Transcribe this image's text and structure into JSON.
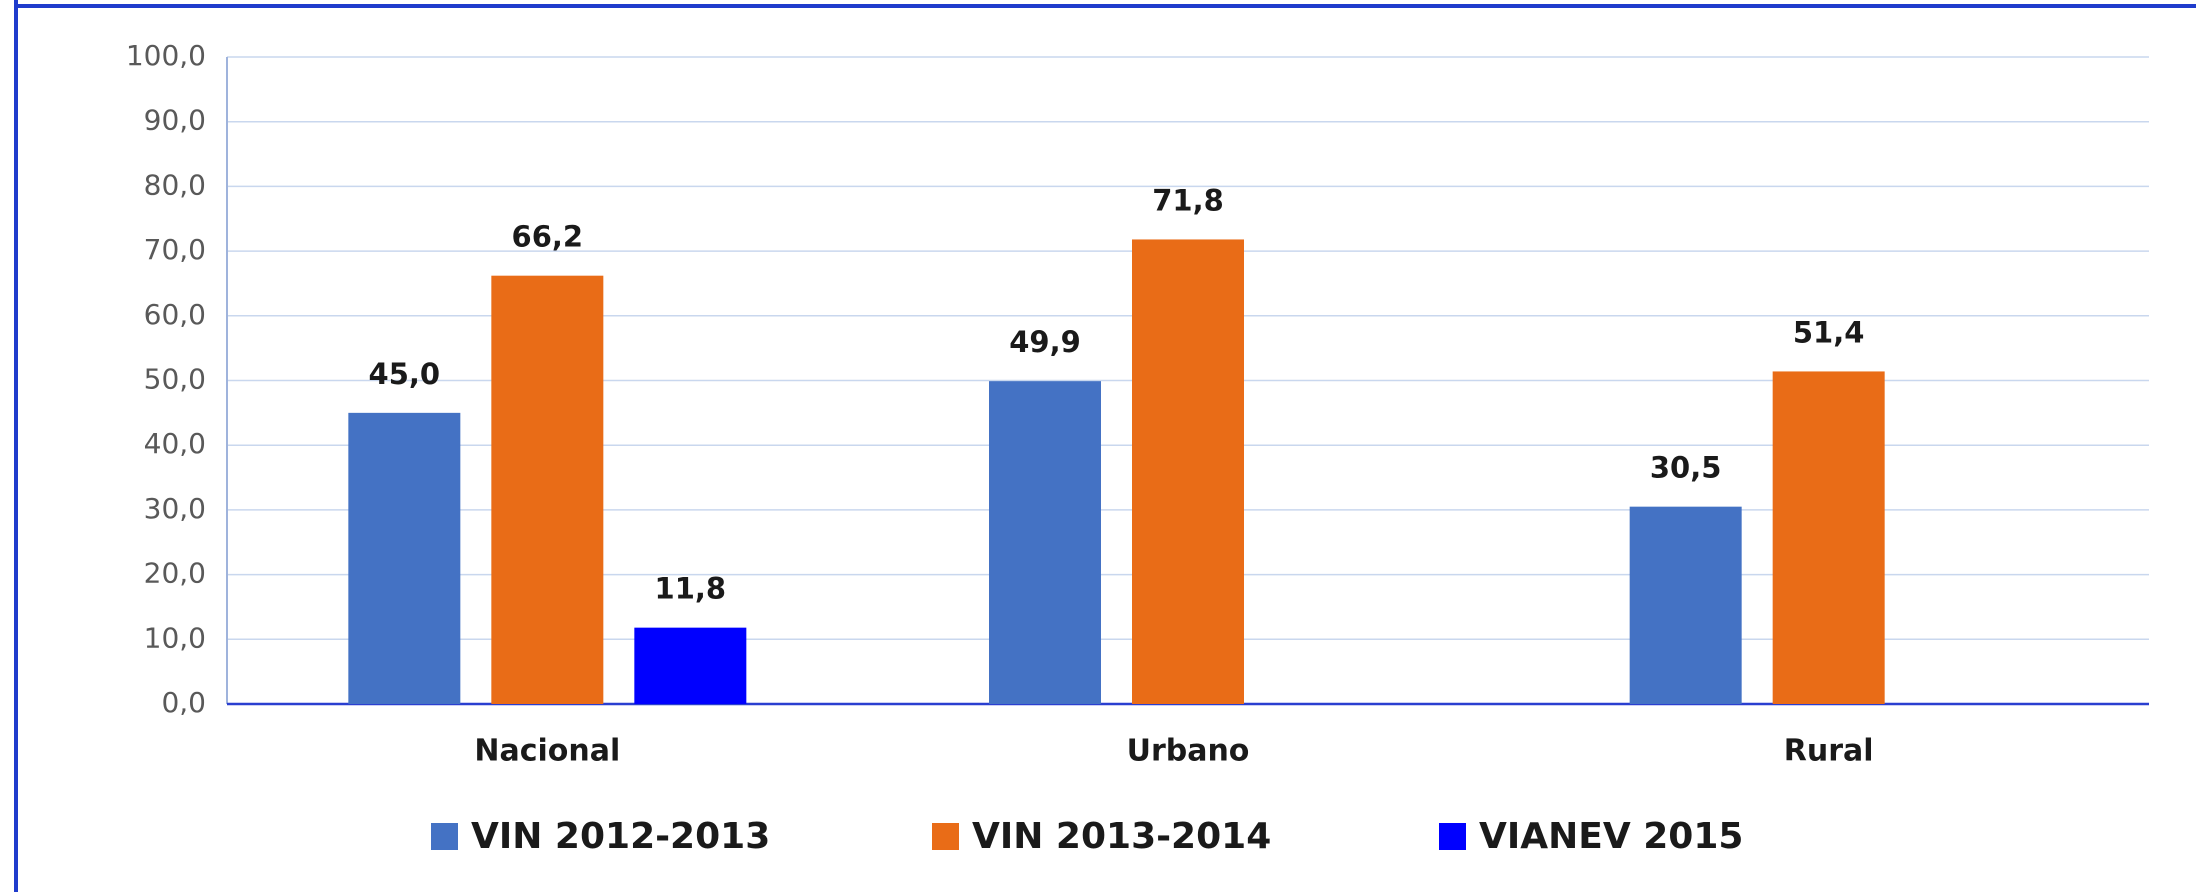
{
  "chart_data": {
    "type": "bar",
    "categories": [
      "Nacional",
      "Urbano",
      "Rural"
    ],
    "series": [
      {
        "name": "VIN 2012-2013",
        "color": "#4472c4",
        "values": [
          45.0,
          49.9,
          30.5
        ],
        "value_labels": [
          "45,0",
          "49,9",
          "30,5"
        ]
      },
      {
        "name": "VIN 2013-2014",
        "color": "#e96c17",
        "values": [
          66.2,
          71.8,
          51.4
        ],
        "value_labels": [
          "66,2",
          "71,8",
          "51,4"
        ]
      },
      {
        "name": "VIANEV 2015",
        "color": "#0000ff",
        "values": [
          11.8,
          null,
          null
        ],
        "value_labels": [
          "11,8",
          null,
          null
        ]
      }
    ],
    "ylim": [
      0,
      100
    ],
    "yticks": [
      {
        "value": 0,
        "label": "0,0"
      },
      {
        "value": 10,
        "label": "10,0"
      },
      {
        "value": 20,
        "label": "20,0"
      },
      {
        "value": 30,
        "label": "30,0"
      },
      {
        "value": 40,
        "label": "40,0"
      },
      {
        "value": 50,
        "label": "50,0"
      },
      {
        "value": 60,
        "label": "60,0"
      },
      {
        "value": 70,
        "label": "70,0"
      },
      {
        "value": 80,
        "label": "80,0"
      },
      {
        "value": 90,
        "label": "90,0"
      },
      {
        "value": 100,
        "label": "100,0"
      }
    ],
    "grid": true,
    "legend": "bottom"
  }
}
